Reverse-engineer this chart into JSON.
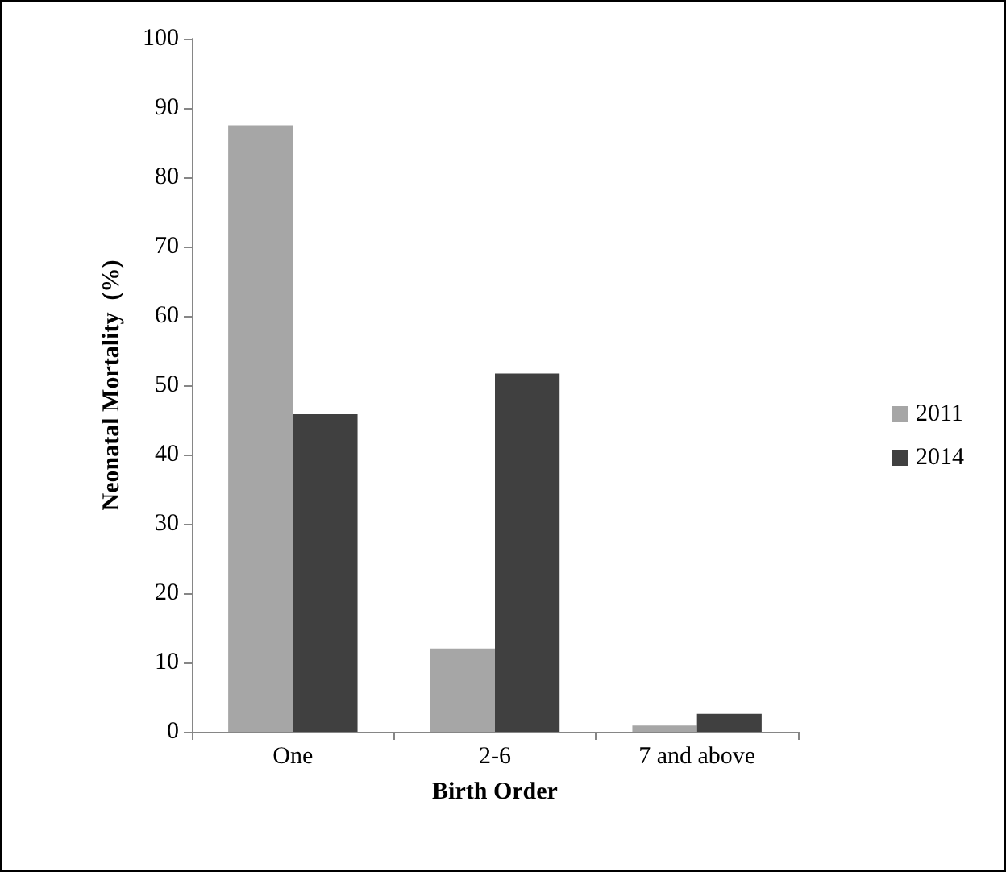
{
  "chart_data": {
    "type": "bar",
    "xlabel": "Birth Order",
    "ylabel": "Neonatal Mortality  (%)",
    "categories": [
      "One",
      "2-6",
      "7 and above"
    ],
    "series": [
      {
        "name": "2011",
        "color": "#a6a6a6",
        "values": [
          87.5,
          12.0,
          0.9
        ]
      },
      {
        "name": "2014",
        "color": "#404040",
        "values": [
          45.8,
          51.7,
          2.6
        ]
      }
    ],
    "ylim": [
      0,
      100
    ],
    "yticks": [
      0,
      10,
      20,
      30,
      40,
      50,
      60,
      70,
      80,
      90,
      100
    ],
    "grid": false,
    "legend": "right"
  }
}
